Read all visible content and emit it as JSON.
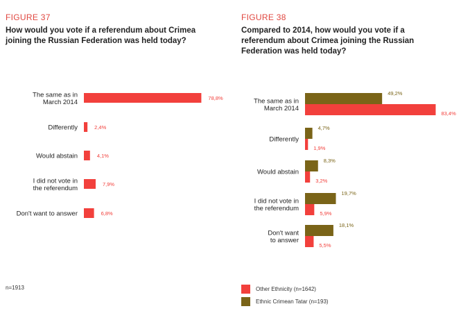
{
  "figure37": {
    "label": "FIGURE 37",
    "title_lines": [
      "How would you vote if a referendum about Crimea",
      "joining the Russian Federation was held today?"
    ],
    "note": "n=1913"
  },
  "figure38": {
    "label": "FIGURE 38",
    "title_lines": [
      "Compared to 2014, how would you vote if a",
      "referendum about Crimea joining the Russian",
      "Federation was held today?"
    ]
  },
  "legend": {
    "items": [
      {
        "label": "Other Ethnicity (n=1642)",
        "color": "#f2403c"
      },
      {
        "label": "Ethnic Crimean Tatar (n=193)",
        "color": "#7a6418"
      }
    ]
  },
  "chart_data": [
    {
      "type": "bar",
      "orientation": "horizontal",
      "categories": [
        [
          "The same as in",
          "March 2014"
        ],
        [
          "Differently"
        ],
        [
          "Would abstain"
        ],
        [
          "I did not vote in",
          "the referendum"
        ],
        [
          "Don't want to answer"
        ]
      ],
      "series": [
        {
          "values": [
            78.8,
            2.4,
            4.1,
            7.9,
            6.8
          ],
          "labels": [
            "78,8%",
            "2,4%",
            "4,1%",
            "7,9%",
            "6,8%"
          ],
          "color": "#f2403c"
        }
      ],
      "xlim": [
        0,
        100
      ]
    },
    {
      "type": "bar",
      "orientation": "horizontal",
      "categories": [
        [
          "The same as in",
          "March 2014"
        ],
        [
          "Differently"
        ],
        [
          "Would abstain"
        ],
        [
          "I did not vote in",
          "the referendum"
        ],
        [
          "Don't want",
          "to answer"
        ]
      ],
      "series": [
        {
          "name": "Ethnic Crimean Tatar (n=193)",
          "values": [
            49.2,
            4.7,
            8.3,
            19.7,
            18.1
          ],
          "labels": [
            "49,2%",
            "4,7%",
            "8,3%",
            "19,7%",
            "18,1%"
          ],
          "color": "#7a6418"
        },
        {
          "name": "Other Ethnicity (n=1642)",
          "values": [
            83.4,
            1.9,
            3.2,
            5.9,
            5.5
          ],
          "labels": [
            "83,4%",
            "1,9%",
            "3,2%",
            "5,9%",
            "5,5%"
          ],
          "color": "#f2403c"
        }
      ],
      "xlim": [
        0,
        100
      ]
    }
  ]
}
